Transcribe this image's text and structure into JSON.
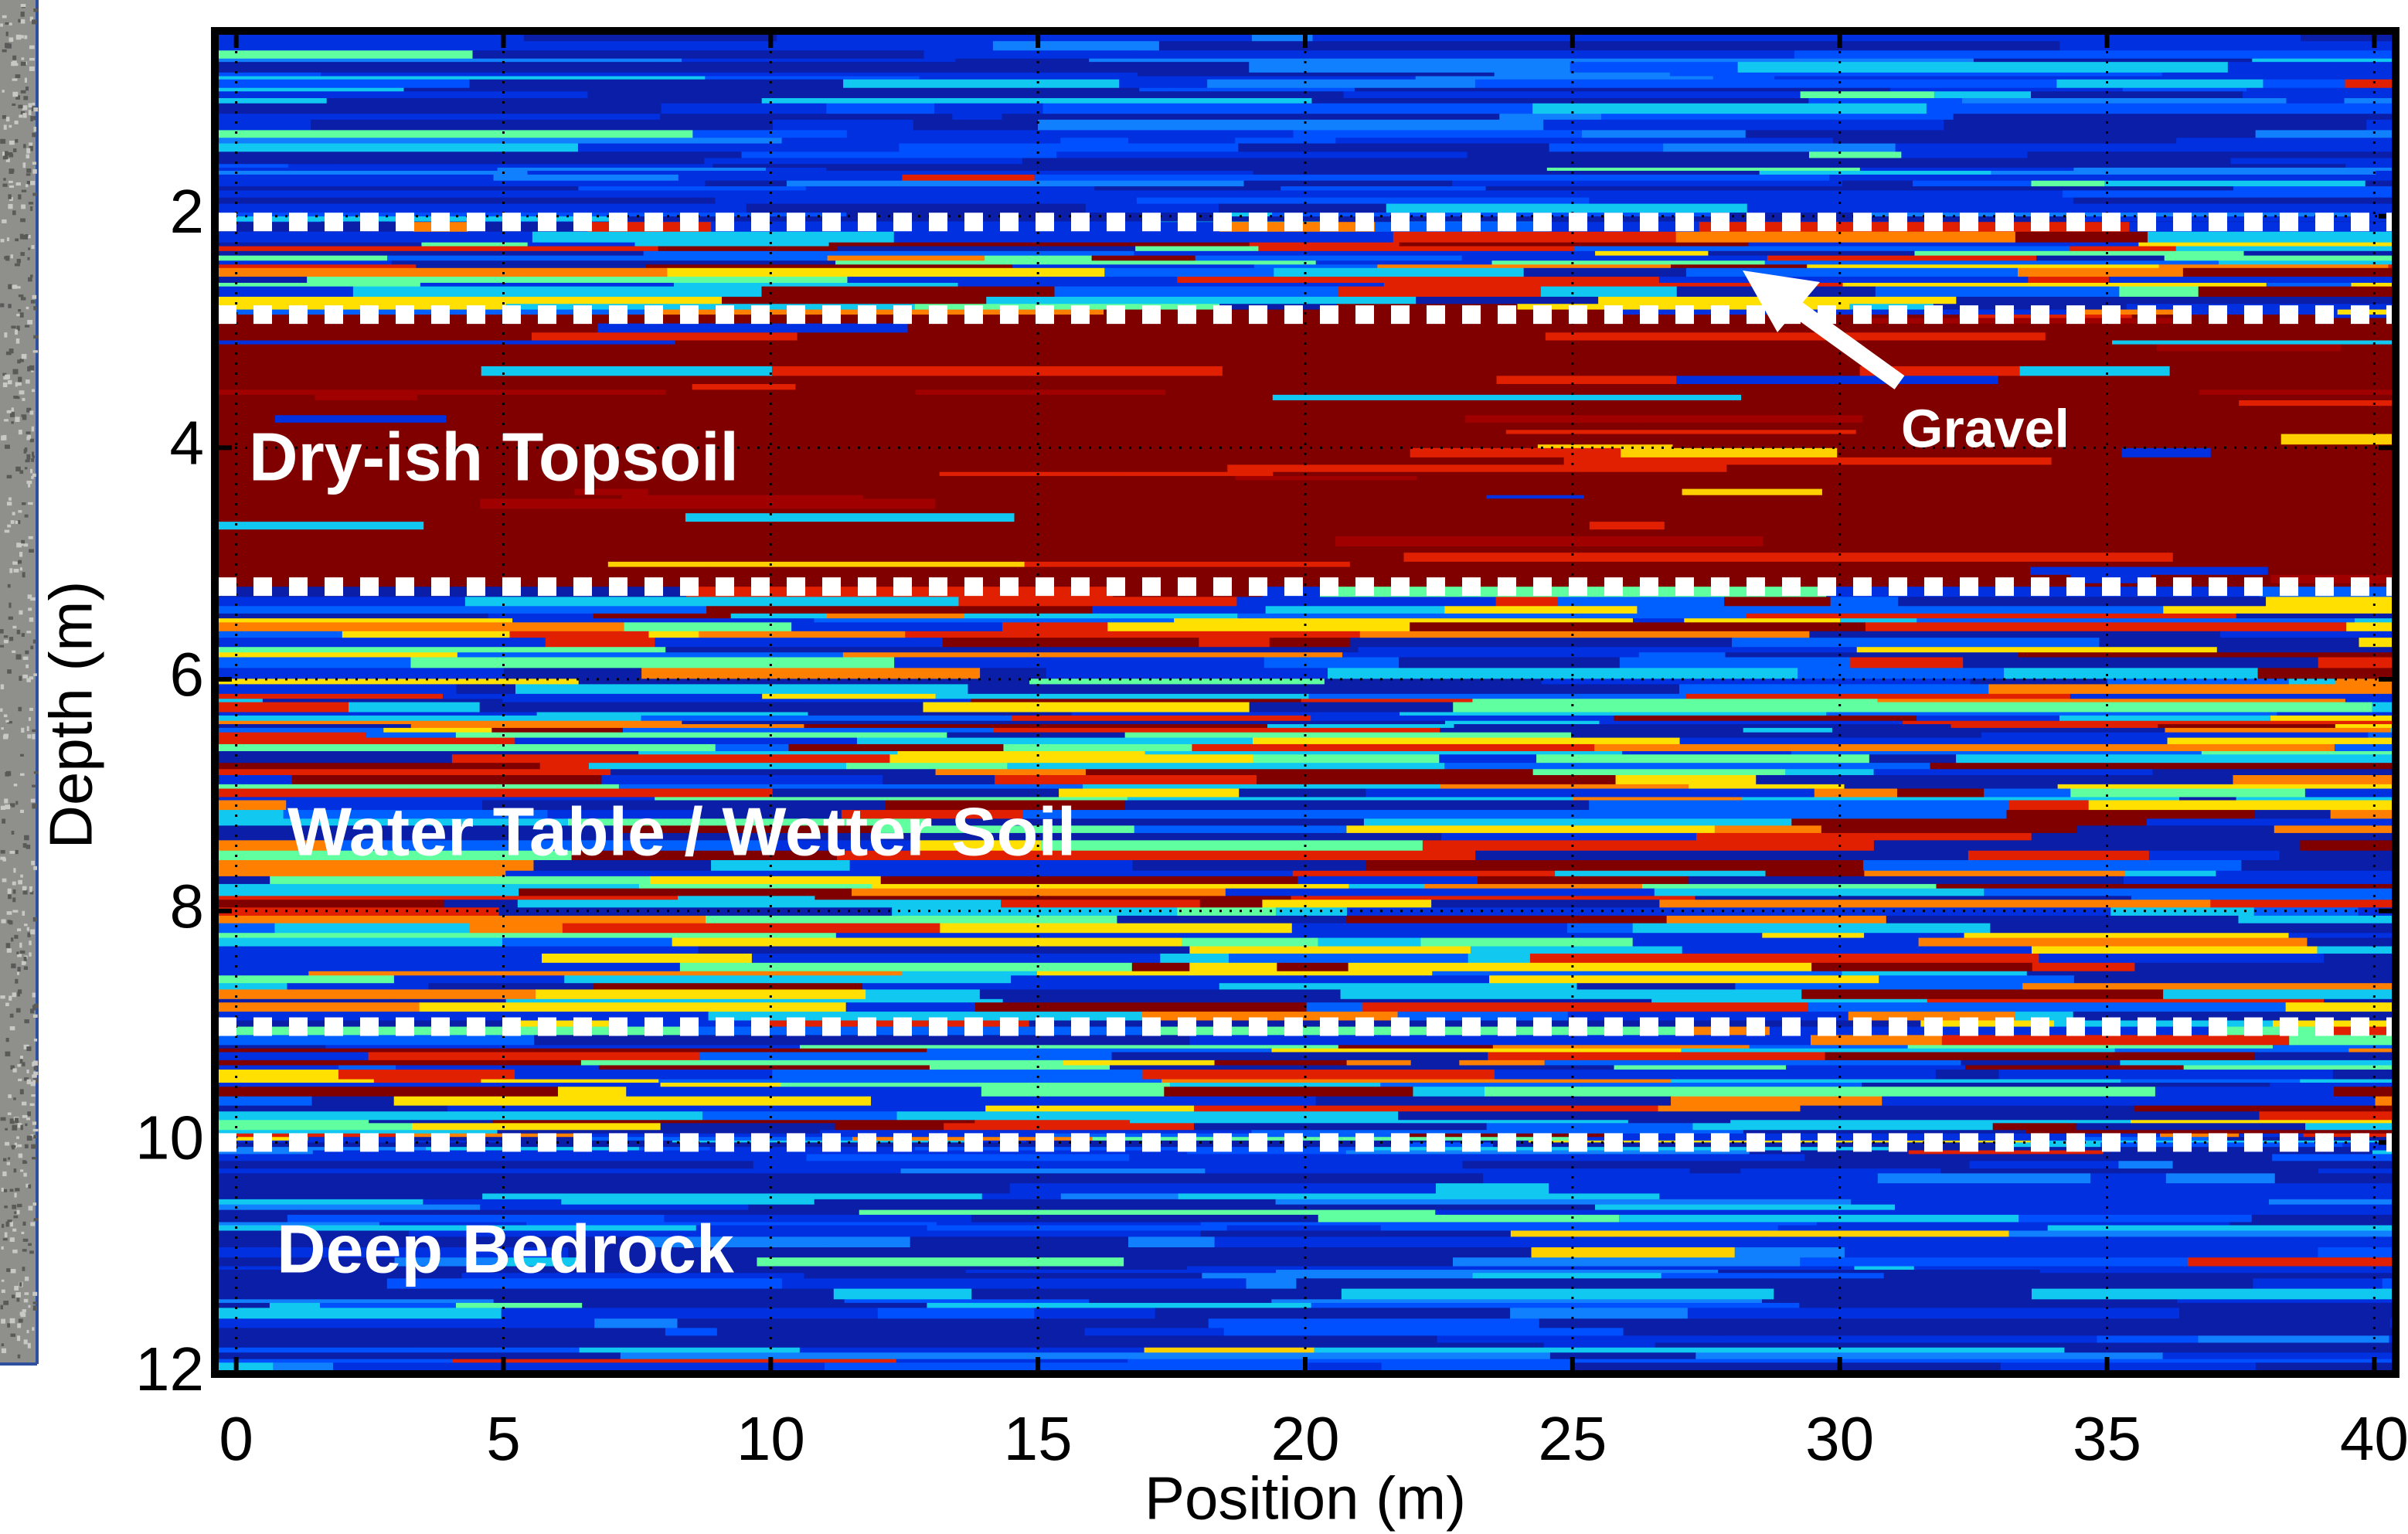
{
  "chart_data": {
    "type": "heatmap",
    "x_label": "Position (m)",
    "y_label": "Depth (m)",
    "xlim": [
      -0.4,
      40.4
    ],
    "ylim": [
      0.4,
      12
    ],
    "y_inverted": true,
    "xticks": [
      0,
      5,
      10,
      15,
      20,
      25,
      30,
      35,
      40
    ],
    "yticks": [
      2,
      4,
      6,
      8,
      10,
      12
    ],
    "grid": true,
    "layer_boundaries": [
      2.05,
      2.85,
      5.2,
      9.0,
      10.0
    ],
    "annotations": [
      "Dry-ish Topsoil",
      "Water Table / Wetter Soil",
      "Deep Bedrock",
      "Gravel"
    ]
  }
}
